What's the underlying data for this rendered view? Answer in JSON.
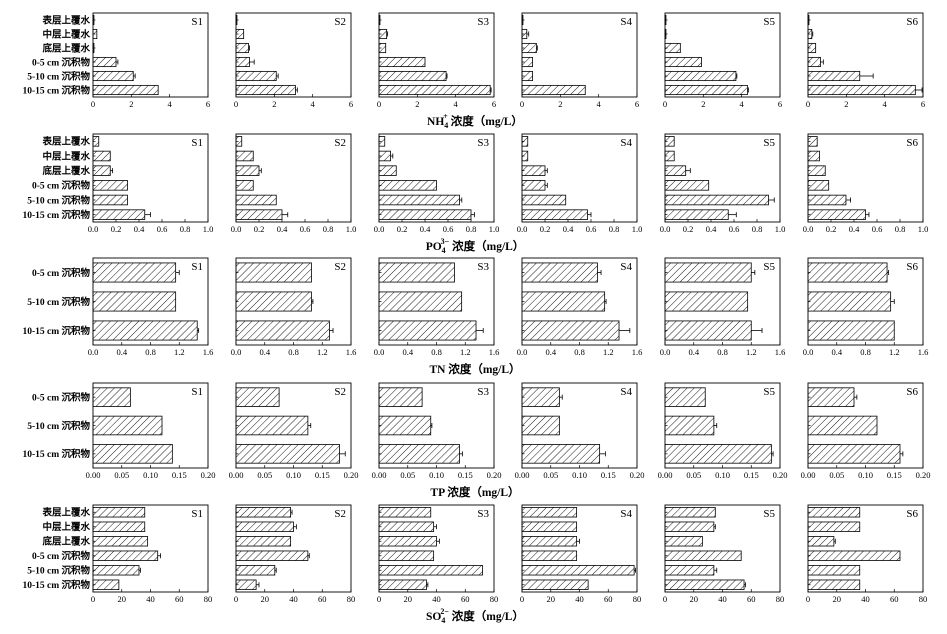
{
  "chart_data": [
    {
      "type": "bar",
      "orientation": "horizontal",
      "xlabel_main": "NH",
      "xlabel_sub": "4",
      "xlabel_sup": "+",
      "xlabel_rest": " 浓度（mg/L）",
      "categories": [
        "表层上覆水",
        "中层上覆水",
        "底层上覆水",
        "0-5 cm 沉积物",
        "5-10 cm 沉积物",
        "10-15 cm 沉积物"
      ],
      "xlim": [
        0,
        6
      ],
      "xticks": [
        "0",
        "2",
        "4",
        "6"
      ],
      "panels": [
        {
          "label": "S1",
          "values": [
            0.05,
            0.2,
            0.05,
            1.2,
            2.1,
            3.4
          ],
          "errors": [
            0,
            0,
            0,
            0.1,
            0.1,
            0
          ]
        },
        {
          "label": "S2",
          "values": [
            0.05,
            0.4,
            0.65,
            0.7,
            2.1,
            3.1
          ],
          "errors": [
            0,
            0,
            0.05,
            0.25,
            0.1,
            0.1
          ]
        },
        {
          "label": "S3",
          "values": [
            0.05,
            0.4,
            0.35,
            2.4,
            3.5,
            5.8
          ],
          "errors": [
            0,
            0.05,
            0,
            0,
            0.05,
            0.05
          ]
        },
        {
          "label": "S4",
          "values": [
            0.05,
            0.25,
            0.75,
            0.55,
            0.55,
            3.3
          ],
          "errors": [
            0,
            0.1,
            0.05,
            0,
            0,
            0
          ]
        },
        {
          "label": "S5",
          "values": [
            0.05,
            0.05,
            0.8,
            1.9,
            3.7,
            4.3
          ],
          "errors": [
            0,
            0,
            0,
            0,
            0.05,
            0.05
          ]
        },
        {
          "label": "S6",
          "values": [
            0.05,
            0.2,
            0.4,
            0.65,
            2.7,
            5.6
          ],
          "errors": [
            0,
            0.05,
            0,
            0.15,
            0.7,
            0.35
          ]
        }
      ]
    },
    {
      "type": "bar",
      "orientation": "horizontal",
      "xlabel_main": "PO",
      "xlabel_sub": "4",
      "xlabel_sup": "3−",
      "xlabel_rest": " 浓度（mg/L）",
      "categories": [
        "表层上覆水",
        "中层上覆水",
        "底层上覆水",
        "0-5 cm 沉积物",
        "5-10 cm 沉积物",
        "10-15 cm 沉积物"
      ],
      "xlim": [
        0,
        1.0
      ],
      "xticks": [
        "0.0",
        "0.2",
        "0.4",
        "0.6",
        "0.8",
        "1.0"
      ],
      "panels": [
        {
          "label": "S1",
          "values": [
            0.05,
            0.15,
            0.15,
            0.3,
            0.3,
            0.45
          ],
          "errors": [
            0,
            0,
            0.02,
            0,
            0,
            0.05
          ]
        },
        {
          "label": "S2",
          "values": [
            0.05,
            0.15,
            0.2,
            0.15,
            0.35,
            0.4
          ],
          "errors": [
            0,
            0,
            0.02,
            0,
            0,
            0.05
          ]
        },
        {
          "label": "S3",
          "values": [
            0.05,
            0.1,
            0.15,
            0.5,
            0.7,
            0.8
          ],
          "errors": [
            0,
            0.02,
            0,
            0,
            0.02,
            0.03
          ]
        },
        {
          "label": "S4",
          "values": [
            0.05,
            0.05,
            0.2,
            0.2,
            0.38,
            0.57
          ],
          "errors": [
            0,
            0,
            0.02,
            0.02,
            0,
            0.03
          ]
        },
        {
          "label": "S5",
          "values": [
            0.08,
            0.08,
            0.18,
            0.38,
            0.9,
            0.55
          ],
          "errors": [
            0,
            0,
            0.04,
            0,
            0.05,
            0.07
          ]
        },
        {
          "label": "S6",
          "values": [
            0.08,
            0.1,
            0.15,
            0.18,
            0.33,
            0.5
          ],
          "errors": [
            0,
            0,
            0,
            0,
            0.04,
            0.03
          ]
        }
      ]
    },
    {
      "type": "bar",
      "orientation": "horizontal",
      "xlabel_main": "TN 浓度（mg/L）",
      "categories": [
        "0-5 cm 沉积物",
        "5-10 cm 沉积物",
        "10-15 cm 沉积物"
      ],
      "xlim": [
        0,
        1.6
      ],
      "xticks": [
        "0.0",
        "0.4",
        "0.8",
        "1.2",
        "1.6"
      ],
      "panels": [
        {
          "label": "S1",
          "values": [
            1.15,
            1.15,
            1.45
          ],
          "errors": [
            0.05,
            0,
            0.02
          ]
        },
        {
          "label": "S2",
          "values": [
            1.05,
            1.05,
            1.3
          ],
          "errors": [
            0,
            0.02,
            0.05
          ]
        },
        {
          "label": "S3",
          "values": [
            1.05,
            1.15,
            1.35
          ],
          "errors": [
            0,
            0,
            0.1
          ]
        },
        {
          "label": "S4",
          "values": [
            1.05,
            1.15,
            1.35
          ],
          "errors": [
            0.05,
            0.02,
            0.15
          ]
        },
        {
          "label": "S5",
          "values": [
            1.2,
            1.15,
            1.2
          ],
          "errors": [
            0.05,
            0,
            0.15
          ]
        },
        {
          "label": "S6",
          "values": [
            1.1,
            1.15,
            1.2
          ],
          "errors": [
            0.02,
            0.05,
            0
          ]
        }
      ]
    },
    {
      "type": "bar",
      "orientation": "horizontal",
      "xlabel_main": "TP 浓度（mg/L）",
      "categories": [
        "0-5 cm 沉积物",
        "5-10 cm 沉积物",
        "10-15 cm 沉积物"
      ],
      "xlim": [
        0,
        0.2
      ],
      "xticks": [
        "0.00",
        "0.05",
        "0.10",
        "0.15",
        "0.20"
      ],
      "panels": [
        {
          "label": "S1",
          "values": [
            0.065,
            0.12,
            0.138
          ],
          "errors": [
            0,
            0,
            0
          ]
        },
        {
          "label": "S2",
          "values": [
            0.075,
            0.125,
            0.18
          ],
          "errors": [
            0,
            0.005,
            0.01
          ]
        },
        {
          "label": "S3",
          "values": [
            0.075,
            0.09,
            0.14
          ],
          "errors": [
            0,
            0.002,
            0.005
          ]
        },
        {
          "label": "S4",
          "values": [
            0.065,
            0.065,
            0.135
          ],
          "errors": [
            0.005,
            0,
            0.01
          ]
        },
        {
          "label": "S5",
          "values": [
            0.07,
            0.085,
            0.185
          ],
          "errors": [
            0,
            0.005,
            0.003
          ]
        },
        {
          "label": "S6",
          "values": [
            0.08,
            0.12,
            0.16
          ],
          "errors": [
            0.005,
            0,
            0.005
          ]
        }
      ]
    },
    {
      "type": "bar",
      "orientation": "horizontal",
      "xlabel_main": "SO",
      "xlabel_sub": "4",
      "xlabel_sup": "2−",
      "xlabel_rest": " 浓度（mg/L）",
      "categories": [
        "表层上覆水",
        "中层上覆水",
        "底层上覆水",
        "0-5 cm 沉积物",
        "5-10 cm 沉积物",
        "10-15 cm 沉积物"
      ],
      "xlim": [
        0,
        80
      ],
      "xticks": [
        "0",
        "20",
        "40",
        "60",
        "80"
      ],
      "panels": [
        {
          "label": "S1",
          "values": [
            36,
            36,
            38,
            45,
            32,
            18
          ],
          "errors": [
            0,
            0,
            0,
            2,
            1,
            0
          ]
        },
        {
          "label": "S2",
          "values": [
            38,
            40,
            38,
            50,
            27,
            14
          ],
          "errors": [
            1,
            2,
            0,
            1,
            1,
            2
          ]
        },
        {
          "label": "S3",
          "values": [
            36,
            38,
            40,
            38,
            72,
            33
          ],
          "errors": [
            0,
            2,
            2,
            0,
            0,
            1
          ]
        },
        {
          "label": "S4",
          "values": [
            38,
            38,
            38,
            38,
            78,
            46
          ],
          "errors": [
            0,
            0,
            2,
            0,
            1,
            0
          ]
        },
        {
          "label": "S5",
          "values": [
            35,
            34,
            26,
            53,
            34,
            55
          ],
          "errors": [
            0,
            1,
            0,
            0,
            2,
            1
          ]
        },
        {
          "label": "S6",
          "values": [
            36,
            36,
            18,
            64,
            36,
            36
          ],
          "errors": [
            0,
            0,
            1,
            0,
            0,
            0
          ]
        }
      ]
    }
  ]
}
